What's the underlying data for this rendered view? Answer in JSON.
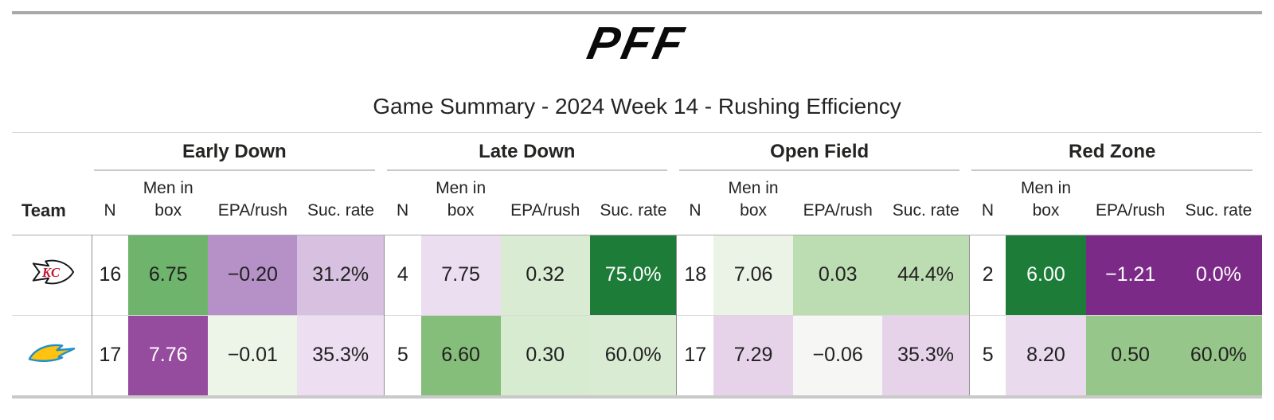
{
  "header": {
    "logo": "PFF",
    "title": "Game Summary - 2024 Week 14 - Rushing Efficiency"
  },
  "table": {
    "team_col_label": "Team",
    "groups": [
      {
        "label": "Early Down"
      },
      {
        "label": "Late Down"
      },
      {
        "label": "Open Field"
      },
      {
        "label": "Red Zone"
      }
    ],
    "sub_columns": [
      "N",
      "Men in\nbox",
      "EPA/rush",
      "Suc. rate"
    ],
    "rows": [
      {
        "team_icon": "chiefs-logo",
        "groups": [
          {
            "n": "16",
            "cells": [
              {
                "v": "6.75",
                "bg": "#6fb46d",
                "fg": "#212121"
              },
              {
                "v": "−0.20",
                "bg": "#b691c7",
                "fg": "#212121"
              },
              {
                "v": "31.2%",
                "bg": "#d7c0e0",
                "fg": "#212121"
              }
            ]
          },
          {
            "n": "4",
            "cells": [
              {
                "v": "7.75",
                "bg": "#ecdef1",
                "fg": "#212121"
              },
              {
                "v": "0.32",
                "bg": "#d9ecd3",
                "fg": "#212121"
              },
              {
                "v": "75.0%",
                "bg": "#1e7c39",
                "fg": "#ffffff"
              }
            ]
          },
          {
            "n": "18",
            "cells": [
              {
                "v": "7.06",
                "bg": "#eaf3e6",
                "fg": "#212121"
              },
              {
                "v": "0.03",
                "bg": "#bcdcb2",
                "fg": "#212121"
              },
              {
                "v": "44.4%",
                "bg": "#bcdcb2",
                "fg": "#212121"
              }
            ]
          },
          {
            "n": "2",
            "cells": [
              {
                "v": "6.00",
                "bg": "#1e7c39",
                "fg": "#ffffff"
              },
              {
                "v": "−1.21",
                "bg": "#7c2a87",
                "fg": "#ffffff"
              },
              {
                "v": "0.0%",
                "bg": "#7c2a87",
                "fg": "#ffffff"
              }
            ]
          }
        ]
      },
      {
        "team_icon": "chargers-logo",
        "groups": [
          {
            "n": "17",
            "cells": [
              {
                "v": "7.76",
                "bg": "#964c9e",
                "fg": "#ffffff"
              },
              {
                "v": "−0.01",
                "bg": "#ecf5e8",
                "fg": "#212121"
              },
              {
                "v": "35.3%",
                "bg": "#eddff1",
                "fg": "#212121"
              }
            ]
          },
          {
            "n": "5",
            "cells": [
              {
                "v": "6.60",
                "bg": "#85bd7a",
                "fg": "#212121"
              },
              {
                "v": "0.30",
                "bg": "#d7ebd0",
                "fg": "#212121"
              },
              {
                "v": "60.0%",
                "bg": "#d9ecd3",
                "fg": "#212121"
              }
            ]
          },
          {
            "n": "17",
            "cells": [
              {
                "v": "7.29",
                "bg": "#e6d3ea",
                "fg": "#212121"
              },
              {
                "v": "−0.06",
                "bg": "#f6f6f5",
                "fg": "#212121"
              },
              {
                "v": "35.3%",
                "bg": "#e6d3ea",
                "fg": "#212121"
              }
            ]
          },
          {
            "n": "5",
            "cells": [
              {
                "v": "8.20",
                "bg": "#e9daee",
                "fg": "#212121"
              },
              {
                "v": "0.50",
                "bg": "#97c68a",
                "fg": "#212121"
              },
              {
                "v": "60.0%",
                "bg": "#97c68a",
                "fg": "#212121"
              }
            ]
          }
        ]
      }
    ]
  },
  "colors": {
    "strong_green": "#1e7c39",
    "strong_purple": "#7c2a87",
    "rule_gray": "#a9a9a9",
    "chiefs_red": "#C8102E",
    "chargers_gold": "#FFC20E",
    "chargers_blue": "#1E8FCB"
  },
  "chart_data": {
    "type": "table",
    "title": "Game Summary - 2024 Week 14 - Rushing Efficiency",
    "column_groups": [
      "Early Down",
      "Late Down",
      "Open Field",
      "Red Zone"
    ],
    "columns_per_group": [
      "N",
      "Men in box",
      "EPA/rush",
      "Suc. rate"
    ],
    "color_encoding": "green = good rushing efficiency, purple = bad; darker = more extreme",
    "rows": [
      {
        "team": "Kansas City Chiefs",
        "early_down": {
          "n": 16,
          "men_in_box": 6.75,
          "epa_per_rush": -0.2,
          "suc_rate_pct": 31.2
        },
        "late_down": {
          "n": 4,
          "men_in_box": 7.75,
          "epa_per_rush": 0.32,
          "suc_rate_pct": 75.0
        },
        "open_field": {
          "n": 18,
          "men_in_box": 7.06,
          "epa_per_rush": 0.03,
          "suc_rate_pct": 44.4
        },
        "red_zone": {
          "n": 2,
          "men_in_box": 6.0,
          "epa_per_rush": -1.21,
          "suc_rate_pct": 0.0
        }
      },
      {
        "team": "Los Angeles Chargers",
        "early_down": {
          "n": 17,
          "men_in_box": 7.76,
          "epa_per_rush": -0.01,
          "suc_rate_pct": 35.3
        },
        "late_down": {
          "n": 5,
          "men_in_box": 6.6,
          "epa_per_rush": 0.3,
          "suc_rate_pct": 60.0
        },
        "open_field": {
          "n": 17,
          "men_in_box": 7.29,
          "epa_per_rush": -0.06,
          "suc_rate_pct": 35.3
        },
        "red_zone": {
          "n": 5,
          "men_in_box": 8.2,
          "epa_per_rush": 0.5,
          "suc_rate_pct": 60.0
        }
      }
    ]
  }
}
